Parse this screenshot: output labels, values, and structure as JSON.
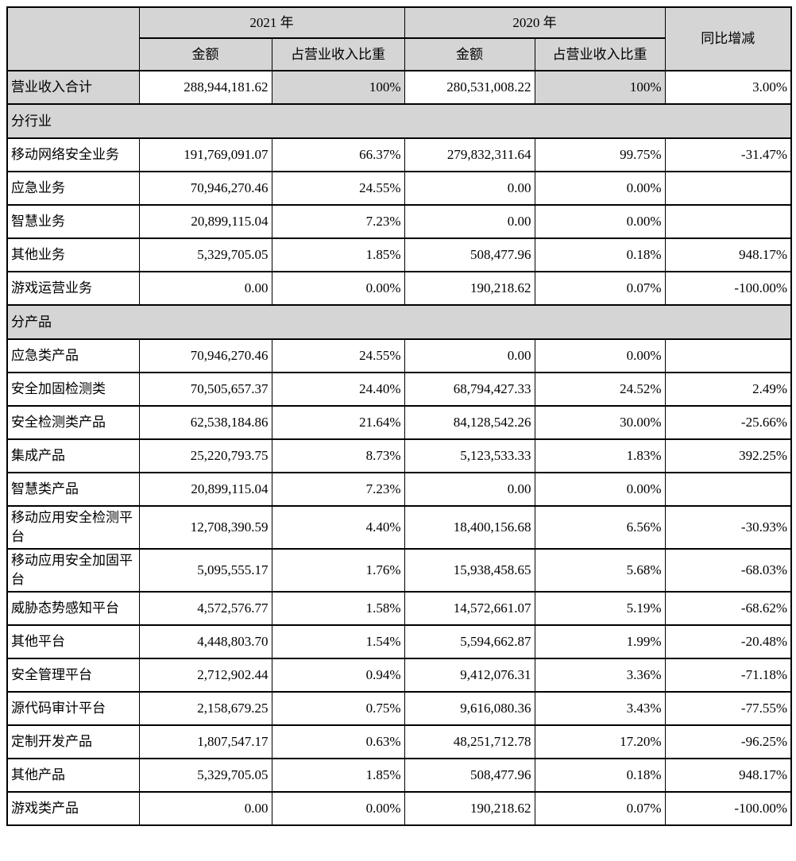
{
  "table": {
    "colors": {
      "header_bg": "#d5d5d5",
      "border": "#000000",
      "cell_bg": "#ffffff"
    },
    "header": {
      "corner": "",
      "year_2021": "2021 年",
      "year_2020": "2020 年",
      "yoy": "同比增减",
      "amount": "金额",
      "share": "占营业收入比重"
    },
    "rows": [
      {
        "type": "data",
        "highlight": true,
        "label": "营业收入合计",
        "cells": [
          "288,944,181.62",
          "100%",
          "280,531,008.22",
          "100%",
          "3.00%"
        ]
      },
      {
        "type": "section",
        "label": "分行业"
      },
      {
        "type": "data",
        "label": "移动网络安全业务",
        "cells": [
          "191,769,091.07",
          "66.37%",
          "279,832,311.64",
          "99.75%",
          "-31.47%"
        ]
      },
      {
        "type": "data",
        "label": "应急业务",
        "cells": [
          "70,946,270.46",
          "24.55%",
          "0.00",
          "0.00%",
          ""
        ]
      },
      {
        "type": "data",
        "label": "智慧业务",
        "cells": [
          "20,899,115.04",
          "7.23%",
          "0.00",
          "0.00%",
          ""
        ]
      },
      {
        "type": "data",
        "label": "其他业务",
        "cells": [
          "5,329,705.05",
          "1.85%",
          "508,477.96",
          "0.18%",
          "948.17%"
        ]
      },
      {
        "type": "data",
        "label": "游戏运营业务",
        "cells": [
          "0.00",
          "0.00%",
          "190,218.62",
          "0.07%",
          "-100.00%"
        ]
      },
      {
        "type": "section",
        "label": "分产品"
      },
      {
        "type": "data",
        "label": "应急类产品",
        "cells": [
          "70,946,270.46",
          "24.55%",
          "0.00",
          "0.00%",
          ""
        ]
      },
      {
        "type": "data",
        "label": "安全加固检测类",
        "cells": [
          "70,505,657.37",
          "24.40%",
          "68,794,427.33",
          "24.52%",
          "2.49%"
        ]
      },
      {
        "type": "data",
        "label": "安全检测类产品",
        "cells": [
          "62,538,184.86",
          "21.64%",
          "84,128,542.26",
          "30.00%",
          "-25.66%"
        ]
      },
      {
        "type": "data",
        "label": "集成产品",
        "cells": [
          "25,220,793.75",
          "8.73%",
          "5,123,533.33",
          "1.83%",
          "392.25%"
        ]
      },
      {
        "type": "data",
        "label": "智慧类产品",
        "cells": [
          "20,899,115.04",
          "7.23%",
          "0.00",
          "0.00%",
          ""
        ]
      },
      {
        "type": "data",
        "label": "移动应用安全检测平台",
        "cells": [
          "12,708,390.59",
          "4.40%",
          "18,400,156.68",
          "6.56%",
          "-30.93%"
        ]
      },
      {
        "type": "data",
        "label": "移动应用安全加固平台",
        "cells": [
          "5,095,555.17",
          "1.76%",
          "15,938,458.65",
          "5.68%",
          "-68.03%"
        ]
      },
      {
        "type": "data",
        "label": "威胁态势感知平台",
        "cells": [
          "4,572,576.77",
          "1.58%",
          "14,572,661.07",
          "5.19%",
          "-68.62%"
        ]
      },
      {
        "type": "data",
        "label": "其他平台",
        "cells": [
          "4,448,803.70",
          "1.54%",
          "5,594,662.87",
          "1.99%",
          "-20.48%"
        ]
      },
      {
        "type": "data",
        "label": "安全管理平台",
        "cells": [
          "2,712,902.44",
          "0.94%",
          "9,412,076.31",
          "3.36%",
          "-71.18%"
        ]
      },
      {
        "type": "data",
        "label": "源代码审计平台",
        "cells": [
          "2,158,679.25",
          "0.75%",
          "9,616,080.36",
          "3.43%",
          "-77.55%"
        ]
      },
      {
        "type": "data",
        "label": "定制开发产品",
        "cells": [
          "1,807,547.17",
          "0.63%",
          "48,251,712.78",
          "17.20%",
          "-96.25%"
        ]
      },
      {
        "type": "data",
        "label": "其他产品",
        "cells": [
          "5,329,705.05",
          "1.85%",
          "508,477.96",
          "0.18%",
          "948.17%"
        ]
      },
      {
        "type": "data",
        "label": "游戏类产品",
        "cells": [
          "0.00",
          "0.00%",
          "190,218.62",
          "0.07%",
          "-100.00%"
        ]
      }
    ]
  }
}
